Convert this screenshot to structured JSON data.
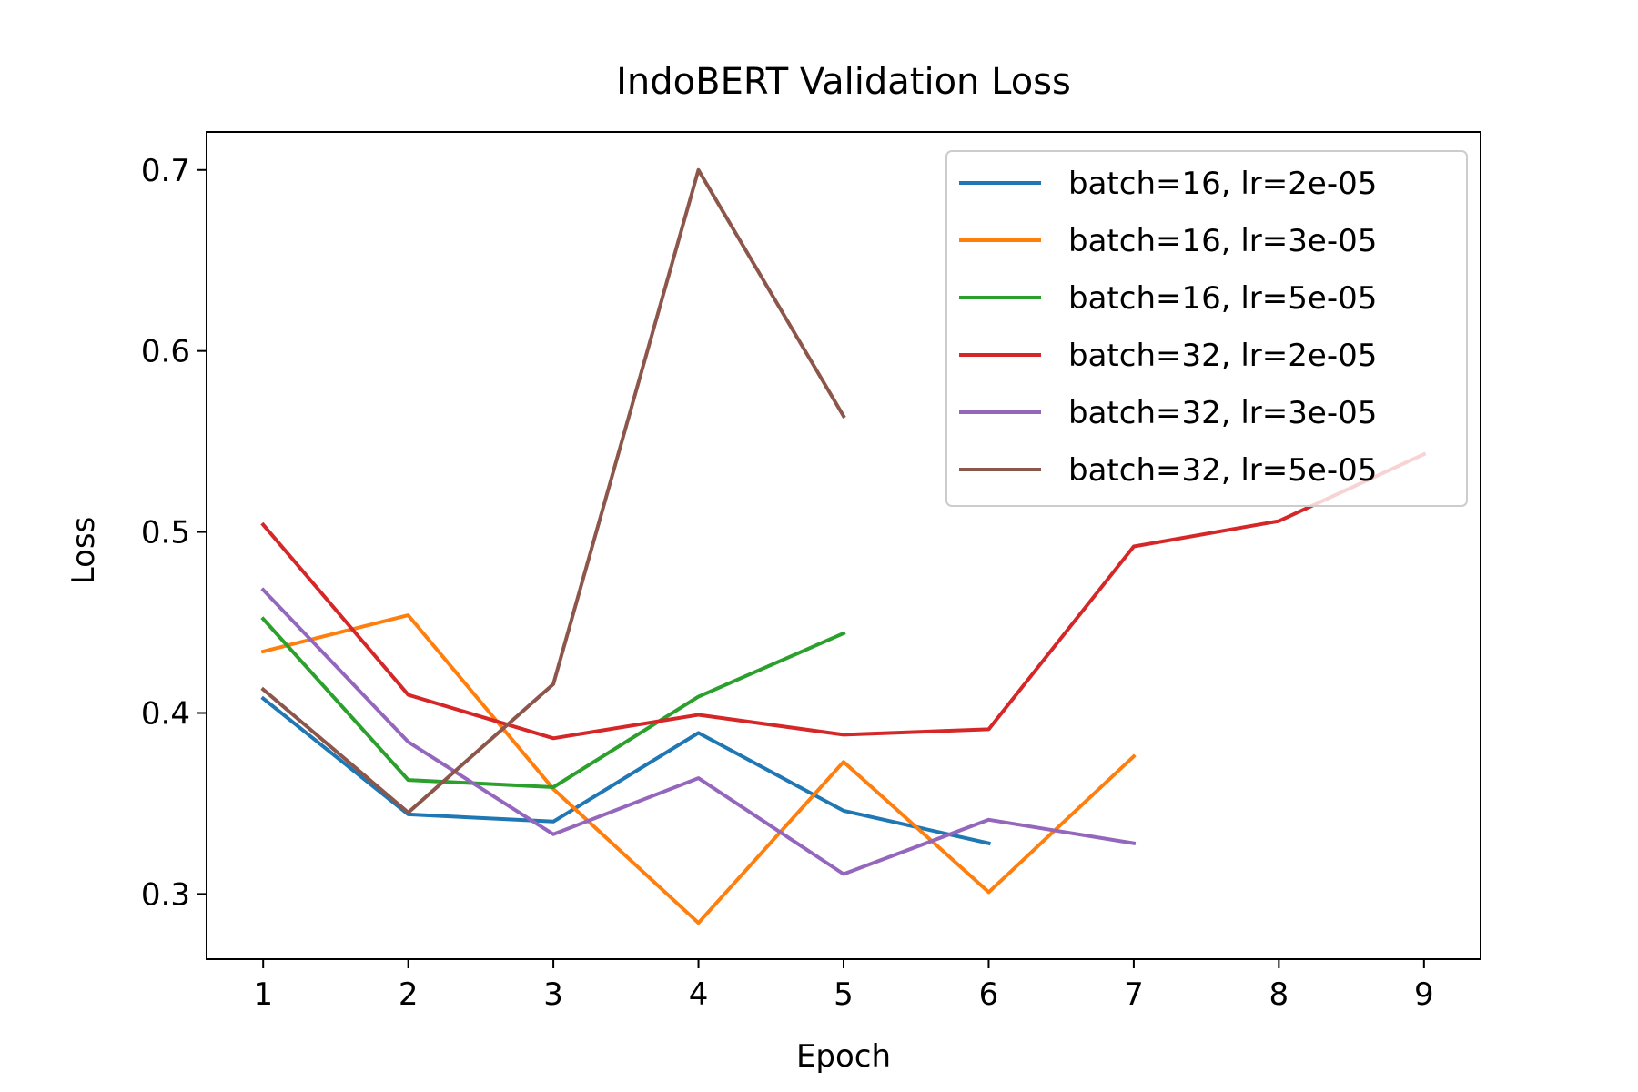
{
  "chart_data": {
    "type": "line",
    "title": "IndoBERT Validation Loss",
    "xlabel": "Epoch",
    "ylabel": "Loss",
    "xlim": [
      0.61,
      9.39
    ],
    "ylim": [
      0.264,
      0.721
    ],
    "xticks": [
      1,
      2,
      3,
      4,
      5,
      6,
      7,
      8,
      9
    ],
    "yticks": [
      0.3,
      0.4,
      0.5,
      0.6,
      0.7
    ],
    "ytick_labels": [
      "0.3",
      "0.4",
      "0.5",
      "0.6",
      "0.7"
    ],
    "grid": false,
    "legend_position": "top-right",
    "series": [
      {
        "name": "batch=16, lr=2e-05",
        "color": "#1f77b4",
        "x": [
          1,
          2,
          3,
          4,
          5,
          6
        ],
        "y": [
          0.408,
          0.344,
          0.34,
          0.389,
          0.346,
          0.328
        ]
      },
      {
        "name": "batch=16, lr=3e-05",
        "color": "#ff7f0e",
        "x": [
          1,
          2,
          3,
          4,
          5,
          6,
          7
        ],
        "y": [
          0.434,
          0.454,
          0.358,
          0.284,
          0.373,
          0.301,
          0.376
        ]
      },
      {
        "name": "batch=16, lr=5e-05",
        "color": "#2ca02c",
        "x": [
          1,
          2,
          3,
          4,
          5
        ],
        "y": [
          0.452,
          0.363,
          0.359,
          0.409,
          0.444
        ]
      },
      {
        "name": "batch=32, lr=2e-05",
        "color": "#d62728",
        "x": [
          1,
          2,
          3,
          4,
          5,
          6,
          7,
          8,
          9
        ],
        "y": [
          0.504,
          0.41,
          0.386,
          0.399,
          0.388,
          0.391,
          0.492,
          0.506,
          0.543
        ]
      },
      {
        "name": "batch=32, lr=3e-05",
        "color": "#9467bd",
        "x": [
          1,
          2,
          3,
          4,
          5,
          6,
          7
        ],
        "y": [
          0.468,
          0.384,
          0.333,
          0.364,
          0.311,
          0.341,
          0.328
        ]
      },
      {
        "name": "batch=32, lr=5e-05",
        "color": "#8c564b",
        "x": [
          1,
          2,
          3,
          4,
          5
        ],
        "y": [
          0.413,
          0.345,
          0.416,
          0.7,
          0.564
        ]
      }
    ]
  }
}
